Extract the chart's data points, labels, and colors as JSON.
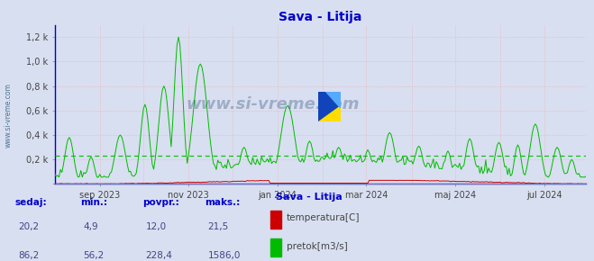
{
  "title": "Sava - Litija",
  "title_color": "#0000cc",
  "bg_color": "#d8dff0",
  "plot_bg_color": "#d8dff0",
  "grid_color": "#ff9999",
  "border_color": "#0000cc",
  "temp_color": "#cc0000",
  "flow_color": "#00bb00",
  "avg_flow": 228.4,
  "ylim": [
    0,
    1300
  ],
  "yticks": [
    0,
    200,
    400,
    600,
    800,
    1000,
    1200
  ],
  "ytick_labels": [
    "",
    "0,2 k",
    "0,4 k",
    "0,6 k",
    "0,8 k",
    "1,0 k",
    "1,2 k"
  ],
  "x_tick_pos": [
    31,
    92,
    153,
    214,
    275,
    336
  ],
  "x_tick_labels": [
    "sep 2023",
    "nov 2023",
    "jan 2024",
    "mar 2024",
    "maj 2024",
    "jul 2024"
  ],
  "v_lines": [
    31,
    61,
    92,
    122,
    153,
    184,
    214,
    245,
    275,
    306,
    336
  ],
  "watermark": "www.si-vreme.com",
  "watermark_color": "#1a3a6a",
  "left_label": "www.si-vreme.com",
  "left_label_color": "#1a5276",
  "legend_title": "Sava - Litija",
  "legend_color": "#0000cc",
  "bottom_labels": [
    "sedaj:",
    "min.:",
    "povpr.:",
    "maks.:"
  ],
  "bottom_temp_vals": [
    "20,2",
    "4,9",
    "12,0",
    "21,5"
  ],
  "bottom_flow_vals": [
    "86,2",
    "56,2",
    "228,4",
    "1586,0"
  ],
  "label_color": "#0000cc",
  "value_color": "#444488",
  "temp_label": "temperatura[C]",
  "flow_label": "pretok[m3/s]",
  "n_days": 366,
  "temp_display_max": 25,
  "flow_max": 1586
}
